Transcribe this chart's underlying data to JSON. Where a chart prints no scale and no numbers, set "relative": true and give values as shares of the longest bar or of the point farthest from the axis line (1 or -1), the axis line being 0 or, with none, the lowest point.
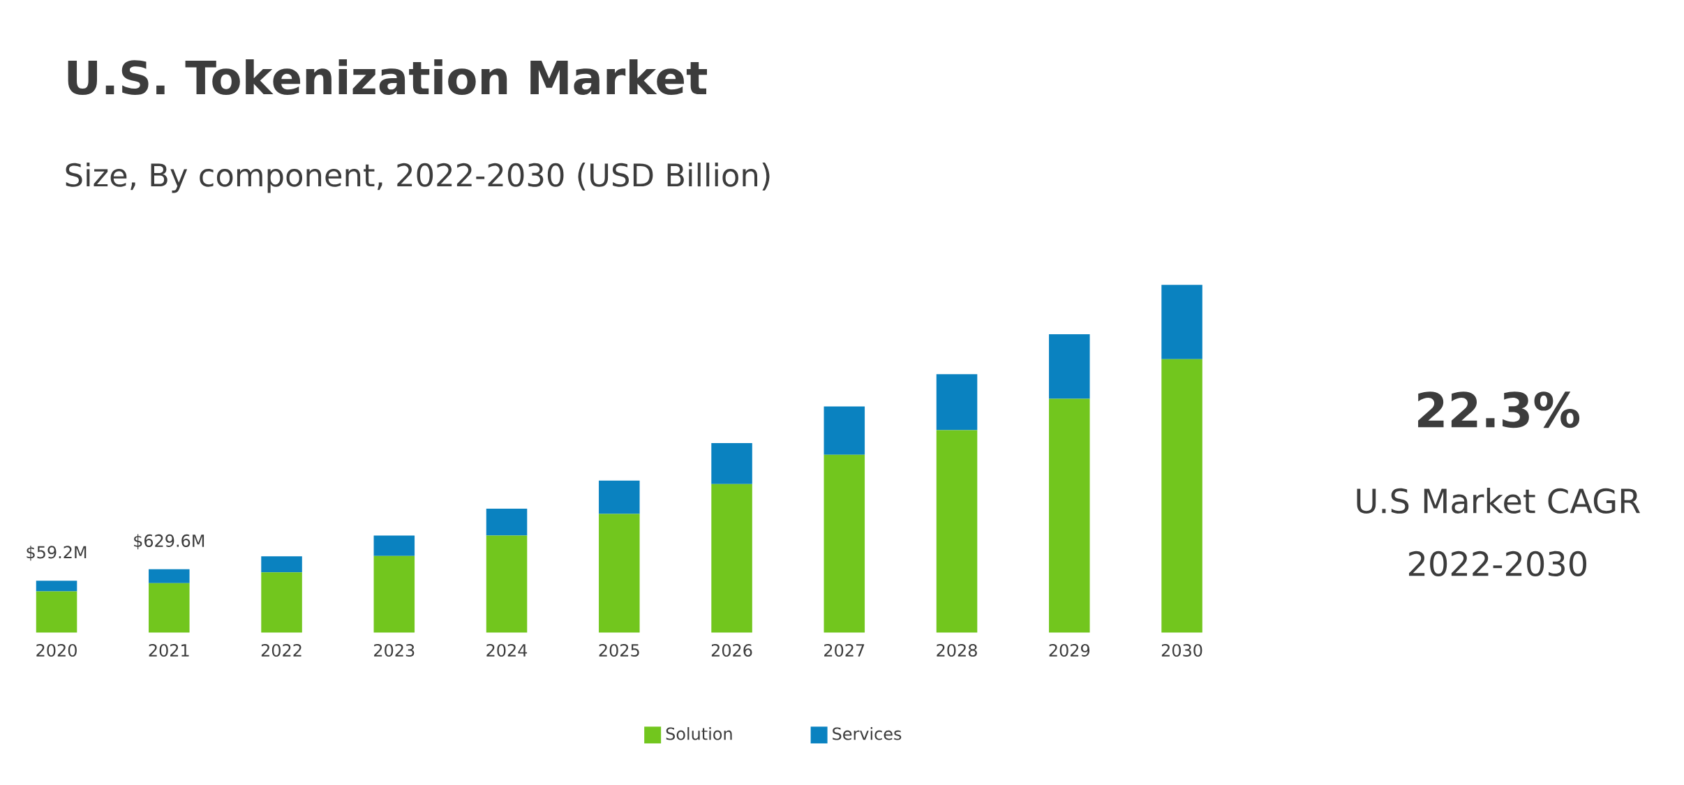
{
  "chart_data": {
    "type": "bar",
    "title": "U.S. Tokenization Market",
    "subtitle": "Size, By component, 2022-2030 (USD Billion)",
    "categories": [
      "2020",
      "2021",
      "2022",
      "2023",
      "2024",
      "2025",
      "2026",
      "2027",
      "2028",
      "2029",
      "2030"
    ],
    "relative": true,
    "stacked": true,
    "legend": "bottom",
    "series": [
      {
        "name": "Solution",
        "color": "#72c61e",
        "values": [
          0.118,
          0.142,
          0.173,
          0.22,
          0.279,
          0.341,
          0.427,
          0.511,
          0.582,
          0.672,
          0.786
        ]
      },
      {
        "name": "Services",
        "color": "#0a82c0",
        "values": [
          0.031,
          0.04,
          0.046,
          0.059,
          0.077,
          0.096,
          0.118,
          0.139,
          0.161,
          0.186,
          0.214
        ]
      }
    ],
    "annotations": [
      {
        "text": "$59.2M",
        "x": "2020",
        "y": 0.149
      },
      {
        "text": "$629.6M",
        "x": "2021",
        "y": 0.182
      },
      "22.3%",
      "U.S Market CAGR",
      "2022-2030"
    ]
  }
}
